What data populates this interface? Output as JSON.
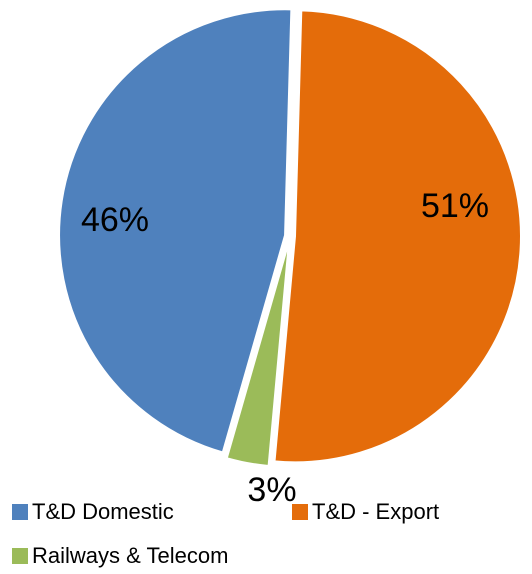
{
  "chart_data": {
    "type": "pie",
    "categories": [
      "T&D Domestic",
      "T&D - Export",
      "Railways & Telecom"
    ],
    "values": [
      46,
      51,
      3
    ],
    "value_labels": [
      "46%",
      "51%",
      "3%"
    ],
    "colors": [
      "#4f81bd",
      "#e46c0a",
      "#9bbb59"
    ]
  }
}
